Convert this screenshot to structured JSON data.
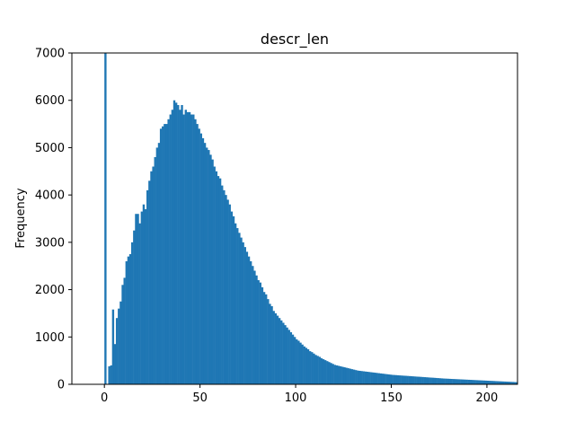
{
  "chart_data": {
    "type": "bar",
    "title": "descr_len",
    "xlabel": "",
    "ylabel": "Frequency",
    "xlim": [
      -17,
      216
    ],
    "ylim": [
      0,
      7000
    ],
    "grid": false,
    "bar_color": "#1f77b4",
    "bin_width": 1,
    "x_ticks": [
      0,
      50,
      100,
      150,
      200
    ],
    "x_tick_labels": [
      "0",
      "50",
      "100",
      "150",
      "200"
    ],
    "y_ticks": [
      0,
      1000,
      2000,
      3000,
      4000,
      5000,
      6000,
      7000
    ],
    "y_tick_labels": [
      "0",
      "1000",
      "2000",
      "3000",
      "4000",
      "5000",
      "6000",
      "7000"
    ],
    "series": [
      {
        "bins_start": [
          0,
          1,
          2,
          3,
          4,
          5,
          6,
          7,
          8,
          9,
          10,
          11,
          12,
          13,
          14,
          15,
          16,
          17,
          18,
          19,
          20,
          21,
          22,
          23,
          24,
          25,
          26,
          27,
          28,
          29,
          30,
          31,
          32,
          33,
          34,
          35,
          36,
          37,
          38,
          39,
          40,
          41,
          42,
          43,
          44,
          45,
          46,
          47,
          48,
          49,
          50,
          51,
          52,
          53,
          54,
          55,
          56,
          57,
          58,
          59,
          60,
          61,
          62,
          63,
          64,
          65,
          66,
          67,
          68,
          69,
          70,
          71,
          72,
          73,
          74,
          75,
          76,
          77,
          78,
          79,
          80,
          81,
          82,
          83,
          84,
          85,
          86,
          87,
          88,
          89,
          90,
          91,
          92,
          93,
          94,
          95,
          96,
          97,
          98,
          99,
          100,
          101,
          102,
          103,
          104,
          105,
          106,
          107,
          108,
          109,
          110,
          111,
          112,
          113,
          114,
          115,
          116,
          117,
          118,
          119,
          120,
          121,
          122,
          123,
          124,
          125,
          126,
          127,
          128,
          129,
          130,
          131,
          132,
          133,
          134,
          135,
          136,
          137,
          138,
          139,
          140,
          141,
          142,
          143,
          144,
          145,
          146,
          147,
          148,
          149,
          150,
          151,
          152,
          153,
          154,
          155,
          156,
          157,
          158,
          159,
          160,
          161,
          162,
          163,
          164,
          165,
          166,
          167,
          168,
          169,
          170,
          171,
          172,
          173,
          174,
          175,
          176,
          177,
          178,
          179,
          180,
          181,
          182,
          183,
          184,
          185,
          186,
          187,
          188,
          189,
          190,
          191,
          192,
          193,
          194,
          195,
          196,
          197,
          198,
          199,
          200,
          201,
          202,
          203,
          204,
          205,
          206,
          207,
          208,
          209,
          210,
          211,
          212,
          213,
          214,
          215
        ],
        "values": [
          7000,
          0,
          380,
          400,
          1580,
          850,
          1400,
          1600,
          1750,
          2100,
          2250,
          2600,
          2700,
          2750,
          3000,
          3250,
          3600,
          3600,
          3400,
          3650,
          3800,
          3700,
          4100,
          4300,
          4500,
          4600,
          4800,
          5000,
          5100,
          5400,
          5450,
          5500,
          5500,
          5600,
          5700,
          5800,
          6000,
          5950,
          5900,
          5800,
          5900,
          5700,
          5800,
          5750,
          5750,
          5700,
          5700,
          5600,
          5500,
          5400,
          5300,
          5200,
          5100,
          5000,
          4950,
          4850,
          4750,
          4600,
          4500,
          4400,
          4350,
          4200,
          4100,
          4000,
          3900,
          3800,
          3650,
          3550,
          3400,
          3300,
          3200,
          3100,
          3000,
          2900,
          2800,
          2700,
          2600,
          2500,
          2400,
          2300,
          2200,
          2150,
          2050,
          1950,
          1900,
          1800,
          1700,
          1650,
          1550,
          1500,
          1450,
          1400,
          1350,
          1300,
          1250,
          1200,
          1150,
          1100,
          1050,
          1000,
          950,
          920,
          880,
          840,
          800,
          770,
          740,
          700,
          680,
          650,
          620,
          600,
          580,
          550,
          530,
          510,
          490,
          470,
          450,
          430,
          410,
          400,
          390,
          380,
          370,
          360,
          350,
          340,
          330,
          320,
          310,
          300,
          290,
          285,
          280,
          275,
          270,
          265,
          260,
          255,
          250,
          245,
          240,
          235,
          230,
          225,
          220,
          215,
          210,
          205,
          200,
          197,
          194,
          191,
          188,
          185,
          182,
          180,
          177,
          174,
          171,
          168,
          165,
          162,
          160,
          157,
          154,
          151,
          148,
          145,
          142,
          140,
          137,
          134,
          131,
          128,
          125,
          122,
          120,
          118,
          116,
          114,
          112,
          110,
          108,
          106,
          104,
          102,
          100,
          98,
          96,
          94,
          92,
          90,
          88,
          86,
          84,
          82,
          80,
          78,
          76,
          74,
          72,
          70,
          68,
          66,
          64,
          62,
          60,
          58,
          56,
          54,
          52,
          50,
          48,
          46,
          44,
          42,
          40,
          38,
          36,
          34,
          32,
          30,
          28
        ]
      }
    ]
  }
}
